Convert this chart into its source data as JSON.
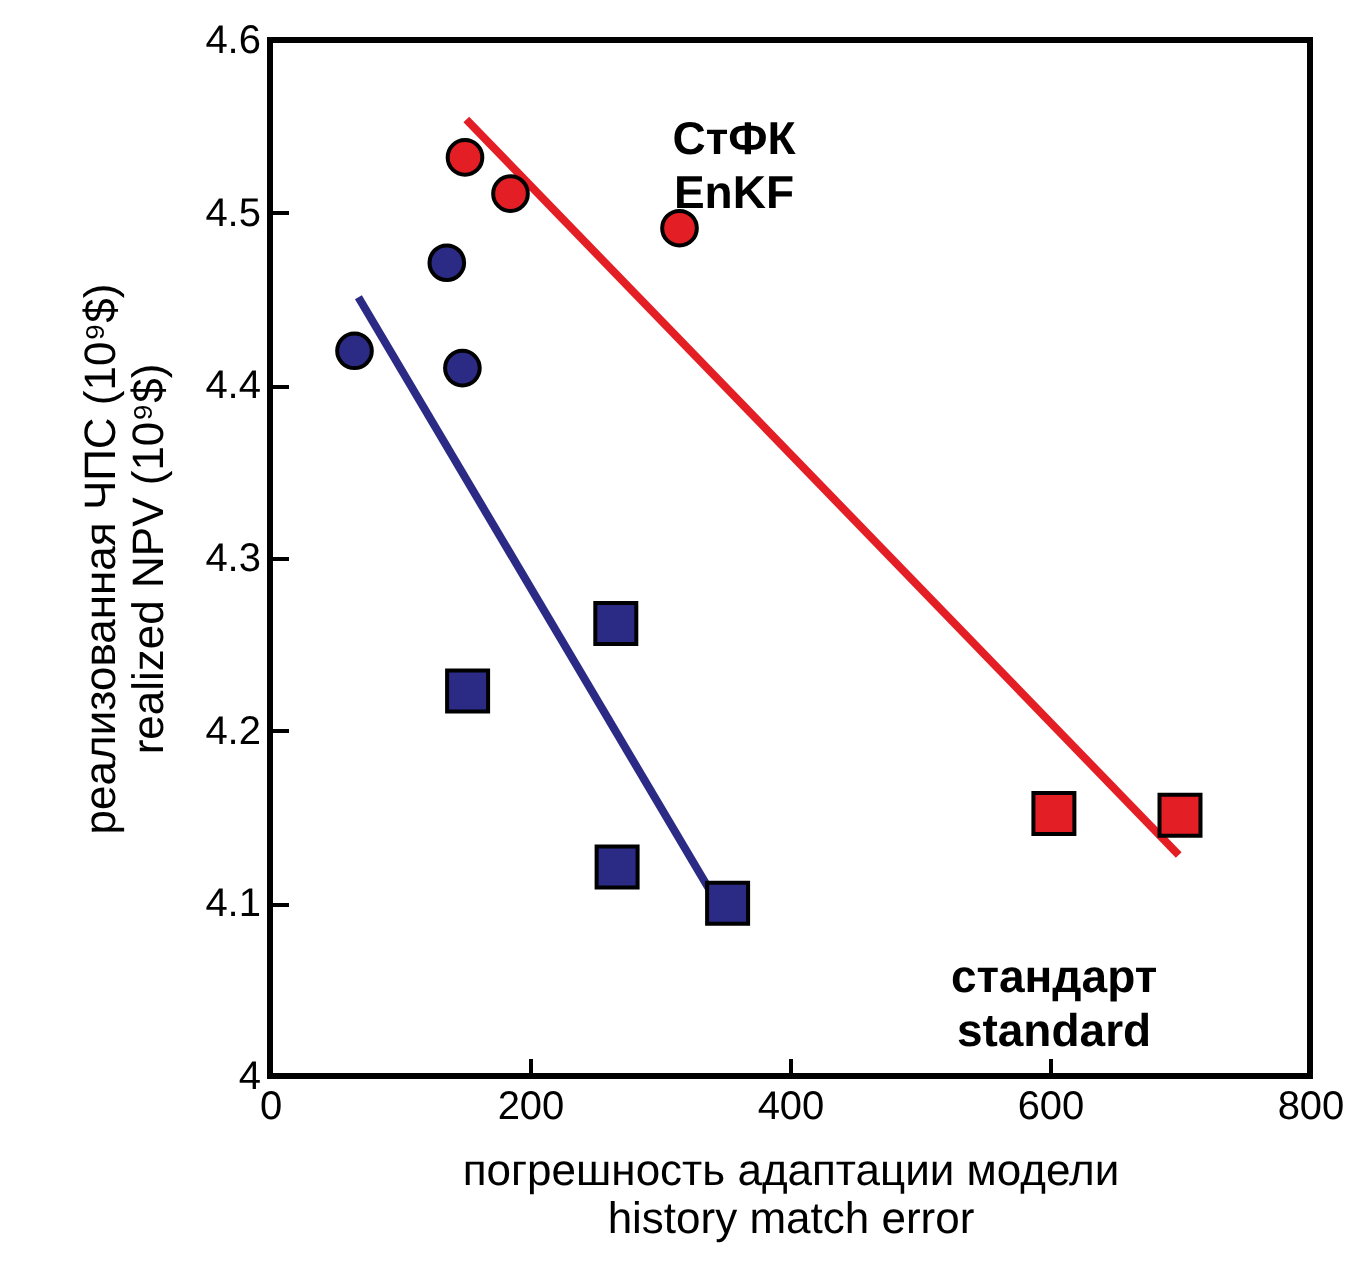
{
  "chart_data": {
    "type": "scatter",
    "xlabel": "погрешность адаптации модели\nhistory match error",
    "ylabel": "реализованная ЧПС (10⁹$)\nrealized NPV (10⁹$)",
    "xlim": [
      0,
      800
    ],
    "xticks": [
      0,
      200,
      400,
      600,
      800
    ],
    "ylim": [
      4,
      4.6
    ],
    "yticks": [
      4,
      4.1,
      4.2,
      4.3,
      4.4,
      4.5,
      4.6
    ],
    "grid": false,
    "annotations": [
      "СтФК\nEnKF",
      "стандарт\nstandard"
    ],
    "series": [
      {
        "type": "line",
        "color": "#e31e24",
        "line_style": "solid",
        "x": [
          151,
          699
        ],
        "values": [
          4.554,
          4.128
        ]
      },
      {
        "type": "line",
        "color": "#2b2a84",
        "line_style": "solid",
        "x": [
          68,
          338
        ],
        "values": [
          4.451,
          4.108
        ]
      },
      {
        "marker": "circle",
        "color": "#e31e24",
        "x": [
          150,
          185,
          315
        ],
        "values": [
          4.532,
          4.511,
          4.491
        ]
      },
      {
        "marker": "circle",
        "color": "#2b2a84",
        "x": [
          65,
          136,
          148
        ],
        "values": [
          4.42,
          4.471,
          4.41
        ]
      },
      {
        "marker": "square",
        "color": "#e31e24",
        "x": [
          603,
          700
        ],
        "values": [
          4.152,
          4.151
        ]
      },
      {
        "marker": "square",
        "color": "#2b2a84",
        "x": [
          152,
          266,
          267,
          352
        ],
        "values": [
          4.223,
          4.262,
          4.121,
          4.1
        ]
      }
    ]
  }
}
